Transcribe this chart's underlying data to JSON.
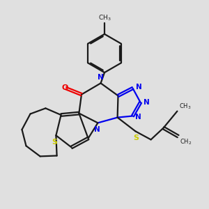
{
  "bg_color": "#e0e0e0",
  "line_color": "#1a1a1a",
  "N_color": "#0000ee",
  "S_color": "#cccc00",
  "O_color": "#ee0000",
  "line_width": 1.6,
  "figsize": [
    3.0,
    3.0
  ],
  "dpi": 100,
  "xlim": [
    0,
    10
  ],
  "ylim": [
    0,
    10
  ]
}
